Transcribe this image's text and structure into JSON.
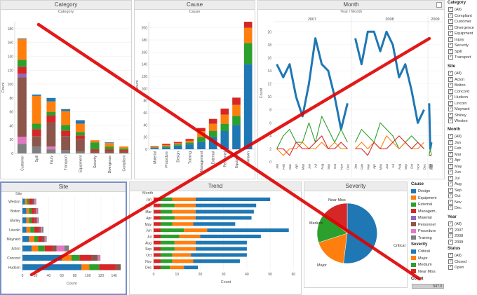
{
  "panels": {
    "category": {
      "title": "Category",
      "subtitle": "Category"
    },
    "cause": {
      "title": "Cause",
      "subtitle": "Cause"
    },
    "month": {
      "title": "Month",
      "subtitle": "Year / Month"
    },
    "site": {
      "title": "Site"
    },
    "trend": {
      "title": "Trend"
    },
    "severity": {
      "title": "Severity"
    }
  },
  "colors": {
    "Design": "#1f77b4",
    "Equipment": "#ff7f0e",
    "External": "#2ca02c",
    "Management": "#d62728",
    "Material": "#9467bd",
    "Personnel": "#8c564b",
    "Procedure": "#e377c2",
    "Training": "#7f7f7f",
    "Critical": "#1f77b4",
    "Major": "#ff7f0e",
    "Medium": "#2ca02c",
    "Near Miss": "#d62728",
    "overlay_x": "#e00000"
  },
  "chart_data": [
    {
      "id": "category",
      "type": "bar",
      "stacked": true,
      "xlabel": "",
      "ylabel": "Count",
      "ylim": [
        0,
        190
      ],
      "yticks": [
        0,
        20,
        40,
        60,
        80,
        100,
        120,
        140,
        160,
        180
      ],
      "categories": [
        "Customer",
        "Spill",
        "Injury",
        "Transport",
        "Equipment",
        "Security",
        "Divergence",
        "Compliant"
      ],
      "series": [
        {
          "name": "Training",
          "values": [
            14,
            10,
            6,
            5,
            3,
            1,
            1,
            1
          ]
        },
        {
          "name": "Procedure",
          "values": [
            10,
            0,
            4,
            0,
            0,
            0,
            0,
            0
          ]
        },
        {
          "name": "Personnel",
          "values": [
            86,
            15,
            35,
            20,
            18,
            3,
            3,
            2
          ]
        },
        {
          "name": "Material",
          "values": [
            5,
            0,
            0,
            0,
            0,
            0,
            0,
            0
          ]
        },
        {
          "name": "Management",
          "values": [
            10,
            10,
            10,
            8,
            5,
            2,
            2,
            2
          ]
        },
        {
          "name": "External",
          "values": [
            10,
            8,
            5,
            8,
            5,
            10,
            4,
            2
          ]
        },
        {
          "name": "Equipment",
          "values": [
            30,
            40,
            15,
            20,
            12,
            3,
            5,
            3
          ]
        },
        {
          "name": "Design",
          "values": [
            1,
            2,
            5,
            3,
            5,
            0,
            1,
            0
          ]
        }
      ]
    },
    {
      "id": "cause",
      "type": "bar",
      "stacked": true,
      "xlabel": "",
      "ylabel": "Count",
      "ylim": [
        0,
        210
      ],
      "yticks": [
        0,
        20,
        40,
        60,
        80,
        100,
        120,
        140,
        160,
        180,
        200
      ],
      "categories": [
        "Material",
        "Procedure",
        "Design",
        "Training",
        "Management",
        "External",
        "Personnel",
        "Equipment",
        "Unknown"
      ],
      "series": [
        {
          "name": "Design",
          "values": [
            2,
            3,
            6,
            8,
            12,
            20,
            30,
            40,
            140
          ]
        },
        {
          "name": "External",
          "values": [
            1,
            2,
            2,
            3,
            8,
            10,
            12,
            15,
            35
          ]
        },
        {
          "name": "Equipment",
          "values": [
            1,
            2,
            2,
            3,
            10,
            12,
            15,
            18,
            25
          ]
        },
        {
          "name": "Management",
          "values": [
            1,
            2,
            2,
            3,
            5,
            8,
            10,
            12,
            10
          ]
        }
      ]
    },
    {
      "id": "month",
      "type": "line",
      "ylabel": "Count",
      "ylim": [
        0,
        21
      ],
      "yticks": [
        0,
        2,
        4,
        6,
        8,
        10,
        12,
        14,
        16,
        18,
        20
      ],
      "years": [
        "2007",
        "2008",
        "2009"
      ],
      "x_labels": [
        "Jan",
        "Feb",
        "Mar",
        "Apr",
        "May",
        "Jun",
        "Jul",
        "Aug",
        "Sep",
        "Oct",
        "Nov",
        "Dec"
      ],
      "series": [
        {
          "name": "Critical",
          "year_values": [
            [
              15,
              13,
              15,
              10,
              7,
              12,
              19,
              15,
              14,
              10,
              5,
              9
            ],
            [
              19,
              15,
              20,
              20,
              17,
              20,
              18,
              13,
              15,
              11,
              6,
              8
            ],
            [
              9,
              2,
              3
            ]
          ]
        },
        {
          "name": "Medium",
          "year_values": [
            [
              2,
              4,
              5,
              3,
              3,
              6,
              3,
              7,
              5,
              3,
              5,
              3
            ],
            [
              3,
              5,
              4,
              3,
              6,
              5,
              4,
              2,
              3,
              4,
              3,
              2
            ],
            [
              1,
              2,
              1
            ]
          ]
        },
        {
          "name": "Major",
          "year_values": [
            [
              2,
              1,
              2,
              2,
              3,
              2,
              2,
              3,
              2,
              3,
              2,
              2
            ],
            [
              2,
              3,
              2,
              3,
              2,
              4,
              3,
              2,
              3,
              2,
              2,
              3
            ],
            [
              1,
              1,
              1
            ]
          ]
        },
        {
          "name": "Near Miss",
          "year_values": [
            [
              2,
              2,
              1,
              3,
              2,
              2,
              3,
              4,
              2,
              2,
              3,
              2
            ],
            [
              2,
              2,
              1,
              3,
              2,
              2,
              3,
              4,
              3,
              2,
              3,
              2
            ],
            [
              1,
              1,
              1
            ]
          ]
        }
      ]
    },
    {
      "id": "site",
      "type": "bar",
      "orientation": "horizontal",
      "stacked": true,
      "xlabel": "Count",
      "ylabel": "Site",
      "xlim": [
        0,
        150
      ],
      "xticks": [
        0,
        20,
        40,
        60,
        80,
        100,
        120,
        140
      ],
      "categories": [
        "Weston",
        "Bolton",
        "Shirley",
        "Lincoln",
        "Maynard",
        "Acton",
        "Concord",
        "Hudson"
      ],
      "series": [
        {
          "name": "Design",
          "values": [
            4,
            6,
            6,
            6,
            10,
            14,
            60,
            90
          ]
        },
        {
          "name": "Equipment",
          "values": [
            3,
            4,
            4,
            6,
            8,
            10,
            15,
            12
          ]
        },
        {
          "name": "External",
          "values": [
            3,
            4,
            4,
            6,
            6,
            10,
            12,
            15
          ]
        },
        {
          "name": "Management",
          "values": [
            5,
            5,
            5,
            7,
            6,
            12,
            18,
            25
          ]
        },
        {
          "name": "Personnel",
          "values": [
            3,
            2,
            3,
            3,
            4,
            6,
            10,
            8
          ]
        },
        {
          "name": "Procedure",
          "values": [
            2,
            2,
            2,
            2,
            2,
            12,
            3,
            0
          ]
        },
        {
          "name": "Training",
          "values": [
            1,
            1,
            1,
            2,
            1,
            7,
            1,
            0
          ]
        }
      ]
    },
    {
      "id": "trend",
      "type": "bar",
      "orientation": "horizontal",
      "stacked": true,
      "xlabel": "Count",
      "ylabel": "Month",
      "xlim": [
        0,
        62
      ],
      "xticks": [
        0,
        10,
        20,
        30,
        40,
        50,
        60
      ],
      "categories": [
        "Jan",
        "Feb",
        "Mar",
        "Apr",
        "May",
        "Jun",
        "Jul",
        "Aug",
        "Sep",
        "Oct",
        "Nov",
        "Dec"
      ],
      "series": [
        {
          "name": "Management",
          "values": [
            3,
            3,
            3,
            3,
            3,
            3,
            3,
            3,
            3,
            3,
            3,
            3
          ]
        },
        {
          "name": "External",
          "values": [
            5,
            6,
            5,
            6,
            5,
            10,
            8,
            6,
            6,
            5,
            5,
            4
          ]
        },
        {
          "name": "Equipment",
          "values": [
            10,
            9,
            10,
            9,
            9,
            10,
            9,
            9,
            9,
            8,
            9,
            6
          ]
        },
        {
          "name": "Design",
          "values": [
            32,
            26,
            25,
            24,
            18,
            35,
            26,
            22,
            22,
            24,
            20,
            6
          ]
        }
      ]
    },
    {
      "id": "severity",
      "type": "pie",
      "slices": [
        {
          "name": "Critical",
          "value": 52
        },
        {
          "name": "Major",
          "value": 18
        },
        {
          "name": "Medium",
          "value": 16
        },
        {
          "name": "Near Miss",
          "value": 14
        }
      ]
    }
  ],
  "legend": {
    "cause_title": "Cause",
    "cause_items": [
      "Design",
      "Equipment",
      "External",
      "Managem..",
      "Material",
      "Personnel",
      "Procedure",
      "Training"
    ],
    "severity_title": "Severity",
    "severity_items": [
      "Critical",
      "Major",
      "Medium",
      "Near Miss"
    ],
    "count_title": "Count",
    "count_value": "547.0"
  },
  "filters": {
    "category_title": "Category",
    "category": [
      "(All)",
      "Compliant",
      "Customer",
      "Divergence",
      "Equipment",
      "Injury",
      "Security",
      "Spill",
      "Transport"
    ],
    "site_title": "Site",
    "site": [
      "(All)",
      "Acton",
      "Bolton",
      "Concord",
      "Hudson",
      "Lincoln",
      "Maynard",
      "Shirley",
      "Weston"
    ],
    "month_title": "Month",
    "month": [
      "(All)",
      "Jan",
      "Feb",
      "Mar",
      "Apr",
      "May",
      "Jun",
      "Jul",
      "Aug",
      "Sep",
      "Oct",
      "Nov",
      "Dec"
    ],
    "year_title": "Year",
    "year": [
      "(All)",
      "2007",
      "2008",
      "2009"
    ],
    "status_title": "Status",
    "status": [
      "(All)",
      "Closed",
      "Open"
    ],
    "check_mark": "✓"
  }
}
